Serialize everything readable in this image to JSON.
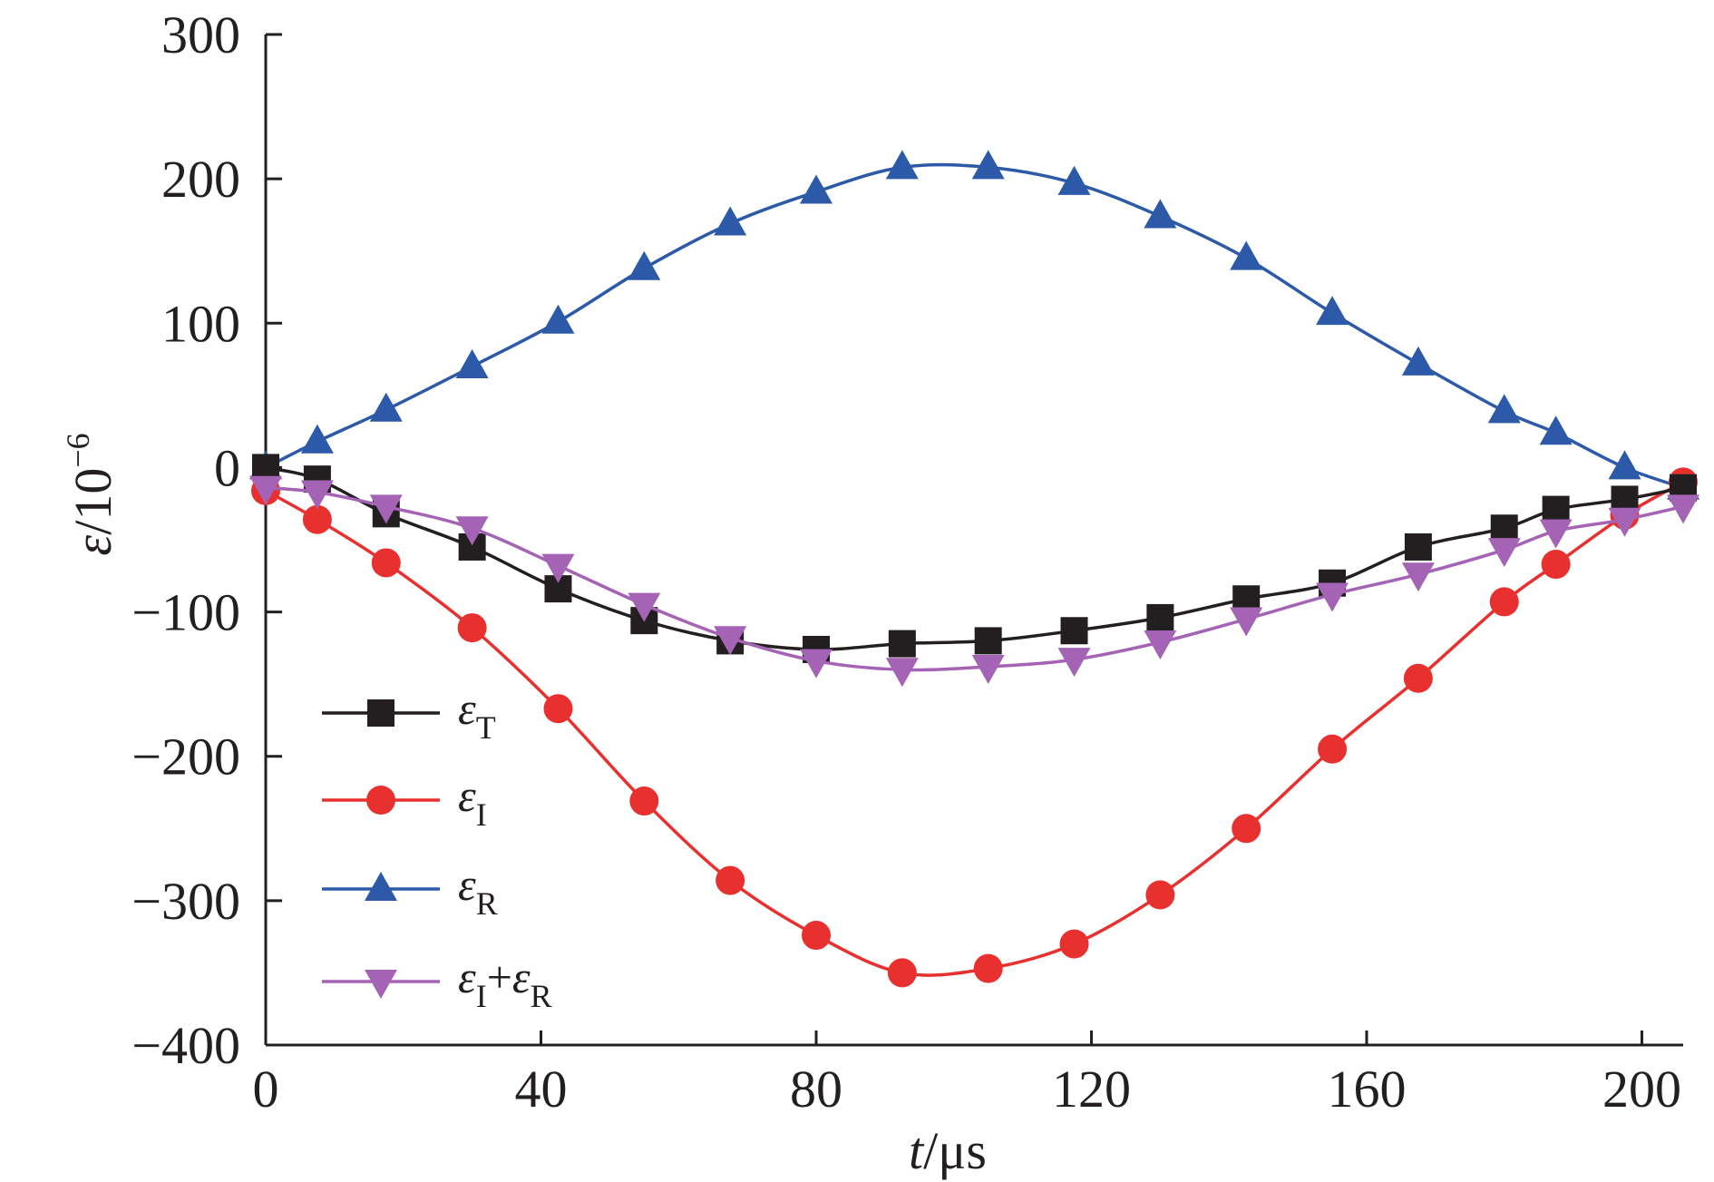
{
  "chart_data": {
    "type": "line",
    "xlabel": {
      "italic": "t",
      "unit": "/μs"
    },
    "ylabel": {
      "italic": "ε",
      "unit": "/10",
      "exponent": "−6"
    },
    "xlim": [
      0,
      206
    ],
    "ylim": [
      -400,
      300
    ],
    "xticks": [
      0,
      40,
      80,
      120,
      160,
      200
    ],
    "xtick_labels": [
      "0",
      "40",
      "80",
      "120",
      "160",
      "200"
    ],
    "yticks": [
      300,
      200,
      100,
      0,
      -100,
      -200,
      -300,
      -400
    ],
    "ytick_labels": [
      "300",
      "200",
      "100",
      "0",
      "−100",
      "−200",
      "−300",
      "−400"
    ],
    "grid": false,
    "legend_position": "lower-left",
    "series": [
      {
        "key": "eT",
        "name": "εT",
        "label_main": "ε",
        "label_sub": "T",
        "color": "#231f20",
        "marker": "square",
        "x": [
          0,
          7.5,
          17.5,
          30,
          42.5,
          55,
          67.5,
          80,
          92.5,
          105,
          117.5,
          130,
          142.5,
          155,
          167.5,
          180,
          187.5,
          197.5,
          206
        ],
        "y": [
          0,
          -8,
          -32,
          -55,
          -84,
          -106,
          -120,
          -126,
          -122,
          -120,
          -113,
          -104,
          -91,
          -80,
          -55,
          -42,
          -29,
          -22,
          -14
        ]
      },
      {
        "key": "eI",
        "name": "εI",
        "label_main": "ε",
        "label_sub": "I",
        "color": "#e8302f",
        "marker": "circle",
        "x": [
          0,
          7.5,
          17.5,
          30,
          42.5,
          55,
          67.5,
          80,
          92.5,
          105,
          117.5,
          130,
          142.5,
          155,
          167.5,
          180,
          187.5,
          197.5,
          206
        ],
        "y": [
          -16,
          -36,
          -66,
          -111,
          -167,
          -231,
          -286,
          -324,
          -350,
          -347,
          -330,
          -296,
          -250,
          -195,
          -146,
          -93,
          -67,
          -33,
          -10
        ]
      },
      {
        "key": "eR",
        "name": "εR",
        "label_main": "ε",
        "label_sub": "R",
        "color": "#2c59a8",
        "marker": "triangle-up",
        "x": [
          0,
          7.5,
          17.5,
          30,
          42.5,
          55,
          67.5,
          80,
          92.5,
          105,
          117.5,
          130,
          142.5,
          155,
          167.5,
          180,
          187.5,
          197.5,
          206
        ],
        "y": [
          0,
          18,
          40,
          70,
          101,
          138,
          169,
          191,
          208,
          208,
          197,
          174,
          145,
          107,
          72,
          39,
          24,
          0,
          -14
        ]
      },
      {
        "key": "eIR",
        "name": "εI+εR",
        "label_main": "ε",
        "label_sub": "I",
        "label_plus": "+",
        "label_main2": "ε",
        "label_sub2": "R",
        "color": "#a463b4",
        "marker": "triangle-down",
        "x": [
          0,
          7.5,
          17.5,
          30,
          42.5,
          55,
          67.5,
          80,
          92.5,
          105,
          117.5,
          130,
          142.5,
          155,
          167.5,
          180,
          187.5,
          197.5,
          206
        ],
        "y": [
          -14,
          -17,
          -27,
          -42,
          -68,
          -95,
          -118,
          -134,
          -140,
          -138,
          -133,
          -121,
          -105,
          -88,
          -74,
          -57,
          -44,
          -36,
          -27
        ]
      }
    ]
  }
}
